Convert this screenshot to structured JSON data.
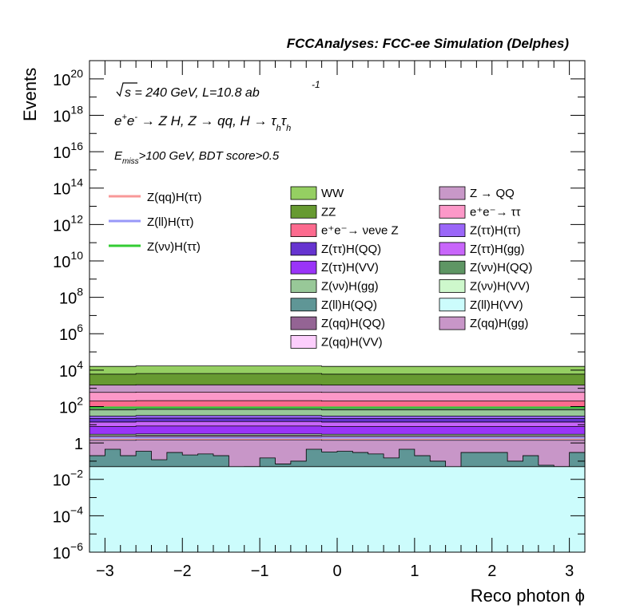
{
  "header": {
    "text": "FCCAnalyses: FCC-ee Simulation (Delphes)"
  },
  "annotations": {
    "energy": "√s = 240 GeV, L=10.8 ab",
    "lumi_exp": "-1",
    "process": "e⁺e⁻ → Z H, Z → qq, H → τ_h τ_h",
    "cuts": "E_miss>100 GeV, BDT score>0.5"
  },
  "colors": {
    "WW": "#95cf62",
    "ZZ": "#679a31",
    "Z_QQ": "#c898c8",
    "ee_tautau": "#fc98c8",
    "nunuZ": "#fc6a8e",
    "tautau_tautau": "#9a66f8",
    "tautau_QQ": "#6634d0",
    "tautau_gg": "#c866fa",
    "tautau_VV": "#9a34f8",
    "nunu_QQ": "#5e9664",
    "nunu_gg": "#98c898",
    "nunu_VV": "#cef8cc",
    "ll_QQ": "#5f9696",
    "ll_VV": "#ccfcfc",
    "qq_QQ": "#946494",
    "qq_gg": "#c896c8",
    "qq_VV": "#fccefc",
    "sig_qq": "#f89898",
    "sig_ll": "#9898f8",
    "sig_nunu": "#33cc33"
  },
  "chart_data": {
    "type": "area",
    "xlabel": "Reco photon ϕ",
    "ylabel": "Events",
    "xlim": [
      -3.2,
      3.2
    ],
    "ylim": [
      1e-06,
      1e+21
    ],
    "log_y": true,
    "x_ticks": [
      "−3",
      "−2",
      "−1",
      "0",
      "1",
      "2",
      "3"
    ],
    "y_ticks": [
      {
        "base": "10",
        "exp": "−6"
      },
      {
        "base": "10",
        "exp": "−4"
      },
      {
        "base": "10",
        "exp": "−2"
      },
      {
        "base": "1",
        "exp": ""
      },
      {
        "base": "10",
        "exp": "2"
      },
      {
        "base": "10",
        "exp": "4"
      },
      {
        "base": "10",
        "exp": "6"
      },
      {
        "base": "10",
        "exp": "8"
      },
      {
        "base": "10",
        "exp": "10"
      },
      {
        "base": "10",
        "exp": "12"
      },
      {
        "base": "10",
        "exp": "14"
      },
      {
        "base": "10",
        "exp": "16"
      },
      {
        "base": "10",
        "exp": "18"
      },
      {
        "base": "10",
        "exp": "20"
      }
    ],
    "n_bins": 32,
    "stack_bottom": 1e-06,
    "stacked_series": [
      {
        "name": "Z(ll)H(VV)",
        "color_key": "ll_VV",
        "top": [
          0.05,
          0.05,
          0.05,
          0.05,
          0.05,
          0.05,
          0.05,
          0.05,
          0.05,
          0.05,
          0.05,
          0.05,
          0.05,
          0.05,
          0.05,
          0.05,
          0.05,
          0.05,
          0.05,
          0.05,
          0.05,
          0.05,
          0.05,
          0.05,
          0.05,
          0.05,
          0.05,
          0.05,
          0.05,
          0.05,
          0.05,
          0.05
        ]
      },
      {
        "name": "Z(ll)H(QQ)",
        "color_key": "ll_QQ",
        "top": [
          0.2,
          0.45,
          0.2,
          0.35,
          0.12,
          0.3,
          0.22,
          0.25,
          0.2,
          0.02,
          0.05,
          0.15,
          0.07,
          0.1,
          0.45,
          0.32,
          0.35,
          0.3,
          0.25,
          0.15,
          0.45,
          0.2,
          0.1,
          0.03,
          0.3,
          0.3,
          0.3,
          0.1,
          0.2,
          0.06,
          0.05,
          0.3
        ]
      },
      {
        "name": "Z(qq)H(gg)",
        "color_key": "qq_gg",
        "top": [
          1.4,
          1.4,
          1.4,
          1.5,
          1.5,
          1.5,
          1.5,
          1.5,
          1.5,
          1.5,
          1.5,
          1.5,
          1.5,
          1.5,
          1.5,
          1.4,
          1.4,
          1.4,
          1.4,
          1.4,
          1.4,
          1.4,
          1.4,
          1.4,
          1.4,
          1.4,
          1.4,
          1.4,
          1.4,
          1.4,
          1.4,
          1.4
        ]
      },
      {
        "name": "Z(qq)H(VV)",
        "color_key": "qq_VV",
        "top": [
          2,
          2,
          2,
          2.1,
          2.1,
          2.1,
          2.1,
          2.1,
          2.1,
          2.1,
          2.1,
          2.1,
          2.1,
          2.1,
          2.1,
          2,
          2,
          2,
          2,
          2,
          2,
          2,
          2,
          2,
          2,
          2,
          2,
          2,
          2,
          2,
          2,
          2
        ]
      },
      {
        "name": "Z(qq)H(QQ)",
        "color_key": "qq_QQ",
        "top": [
          2.5,
          2.5,
          2.5,
          2.6,
          2.6,
          2.6,
          2.6,
          2.6,
          2.6,
          2.6,
          2.6,
          2.6,
          2.6,
          2.6,
          2.6,
          2.5,
          2.5,
          2.5,
          2.5,
          2.5,
          2.5,
          2.5,
          2.5,
          2.5,
          2.5,
          2.5,
          2.5,
          2.5,
          2.5,
          2.5,
          2.5,
          2.5
        ]
      },
      {
        "name": "Z(νν)H(VV)",
        "color_key": "nunu_VV",
        "top": [
          3,
          3,
          3,
          3.1,
          3.1,
          3.1,
          3.1,
          3.1,
          3.1,
          3.1,
          3.1,
          3.1,
          3.1,
          3.1,
          3.1,
          3,
          3,
          3,
          3,
          3,
          3,
          3,
          3,
          3,
          3,
          3,
          3,
          3,
          3,
          3,
          3,
          3
        ]
      },
      {
        "name": "Z(ττ)H(VV)",
        "color_key": "tautau_VV",
        "top": [
          8,
          8,
          8,
          8.5,
          8.5,
          8.5,
          8.5,
          8.5,
          8.5,
          8.5,
          8.5,
          8.5,
          8.5,
          8.5,
          8.5,
          8,
          8,
          8,
          8,
          8,
          8,
          8,
          8,
          8,
          8,
          8,
          8,
          8,
          8,
          8,
          8,
          8
        ]
      },
      {
        "name": "Z(ττ)H(gg)",
        "color_key": "tautau_gg",
        "top": [
          14,
          14,
          14,
          15,
          15,
          15,
          15,
          15,
          15,
          15,
          15,
          15,
          15,
          15,
          15,
          14,
          14,
          14,
          14,
          14,
          14,
          14,
          14,
          14,
          14,
          14,
          14,
          14,
          14,
          14,
          14,
          14
        ]
      },
      {
        "name": "Z(ττ)H(QQ)",
        "color_key": "tautau_QQ",
        "top": [
          22,
          22,
          22,
          23,
          23,
          23,
          23,
          23,
          23,
          23,
          23,
          23,
          23,
          23,
          23,
          22,
          22,
          22,
          22,
          22,
          22,
          22,
          22,
          22,
          22,
          22,
          22,
          22,
          22,
          22,
          22,
          22
        ]
      },
      {
        "name": "Z(ττ)H(ττ)",
        "color_key": "tautau_tautau",
        "top": [
          30,
          30,
          30,
          32,
          32,
          32,
          32,
          32,
          32,
          32,
          32,
          32,
          32,
          32,
          32,
          30,
          30,
          30,
          30,
          30,
          30,
          30,
          30,
          30,
          30,
          30,
          30,
          30,
          30,
          30,
          30,
          30
        ]
      },
      {
        "name": "Z(νν)H(gg)",
        "color_key": "nunu_gg",
        "top": [
          65,
          65,
          65,
          70,
          70,
          70,
          70,
          70,
          70,
          70,
          70,
          70,
          70,
          70,
          70,
          65,
          65,
          65,
          65,
          65,
          65,
          65,
          65,
          65,
          65,
          65,
          65,
          65,
          65,
          65,
          65,
          65
        ]
      },
      {
        "name": "Z(νν)H(QQ)",
        "color_key": "nunu_QQ",
        "top": [
          90,
          90,
          90,
          95,
          95,
          95,
          95,
          95,
          95,
          95,
          95,
          95,
          95,
          95,
          95,
          90,
          90,
          90,
          90,
          90,
          90,
          90,
          90,
          90,
          90,
          90,
          90,
          90,
          90,
          90,
          90,
          90
        ]
      },
      {
        "name": "e⁺e⁻→ νeνe Z",
        "color_key": "nunuZ",
        "top": [
          200,
          200,
          200,
          210,
          210,
          210,
          210,
          210,
          210,
          210,
          210,
          210,
          210,
          210,
          210,
          200,
          200,
          200,
          200,
          200,
          200,
          200,
          200,
          200,
          200,
          200,
          200,
          200,
          200,
          200,
          200,
          200
        ]
      },
      {
        "name": "e⁺e⁻→ ττ",
        "color_key": "ee_tautau",
        "top": [
          600,
          600,
          600,
          620,
          620,
          620,
          620,
          620,
          620,
          620,
          620,
          620,
          620,
          620,
          620,
          600,
          600,
          600,
          600,
          600,
          600,
          600,
          600,
          600,
          600,
          600,
          600,
          600,
          600,
          600,
          600,
          600
        ]
      },
      {
        "name": "Z → QQ",
        "color_key": "Z_QQ",
        "top": [
          1500,
          1500,
          1500,
          1550,
          1550,
          1550,
          1550,
          1550,
          1550,
          1550,
          1550,
          1550,
          1550,
          1550,
          1550,
          1500,
          1500,
          1500,
          1500,
          1500,
          1500,
          1500,
          1500,
          1500,
          1500,
          1500,
          1500,
          1500,
          1500,
          1500,
          1500,
          1500
        ]
      },
      {
        "name": "ZZ",
        "color_key": "ZZ",
        "top": [
          6000,
          6000,
          6000,
          6500,
          6500,
          6500,
          6500,
          6500,
          6500,
          6500,
          6500,
          6500,
          6500,
          6500,
          6500,
          6000,
          6000,
          6000,
          6000,
          6000,
          6000,
          6000,
          6000,
          6000,
          6000,
          6000,
          6000,
          6000,
          6000,
          6000,
          6000,
          6000
        ]
      },
      {
        "name": "WW",
        "color_key": "WW",
        "top": [
          16000,
          16000,
          16000,
          17000,
          17000,
          17000,
          17000,
          17000,
          17000,
          17000,
          17000,
          17000,
          17000,
          17000,
          17000,
          16000,
          16000,
          16000,
          16000,
          16000,
          16000,
          16000,
          16000,
          16000,
          16000,
          16000,
          16000,
          16000,
          16000,
          16000,
          16000,
          16000
        ]
      }
    ],
    "signal_lines": [
      {
        "name": "Z(qq)H(ττ)",
        "color_key": "sig_qq",
        "y": 1.7
      },
      {
        "name": "Z(ll)H(ττ)",
        "color_key": "sig_ll",
        "y": 1.9
      },
      {
        "name": "Z(νν)H(ττ)",
        "color_key": "sig_nunu",
        "y": 90
      }
    ],
    "legend_signal": [
      "Z(qq)H(ττ)",
      "Z(ll)H(ττ)",
      "Z(νν)H(ττ)"
    ],
    "legend_bkg_col1": [
      "WW",
      "ZZ",
      "e⁺e⁻→ νeνe Z",
      "Z(ττ)H(QQ)",
      "Z(ττ)H(VV)",
      "Z(νν)H(gg)",
      "Z(ll)H(QQ)",
      "Z(qq)H(QQ)",
      "Z(qq)H(VV)"
    ],
    "legend_bkg_col2": [
      "Z → QQ",
      "e⁺e⁻→ ττ",
      "Z(ττ)H(ττ)",
      "Z(ττ)H(gg)",
      "Z(νν)H(QQ)",
      "Z(νν)H(VV)",
      "Z(ll)H(VV)",
      "Z(qq)H(gg)"
    ],
    "legend_bkg_col1_keys": [
      "WW",
      "ZZ",
      "nunuZ",
      "tautau_QQ",
      "tautau_VV",
      "nunu_gg",
      "ll_QQ",
      "qq_QQ",
      "qq_VV"
    ],
    "legend_bkg_col2_keys": [
      "Z_QQ",
      "ee_tautau",
      "tautau_tautau",
      "tautau_gg",
      "nunu_QQ",
      "nunu_VV",
      "ll_VV",
      "qq_gg"
    ]
  }
}
